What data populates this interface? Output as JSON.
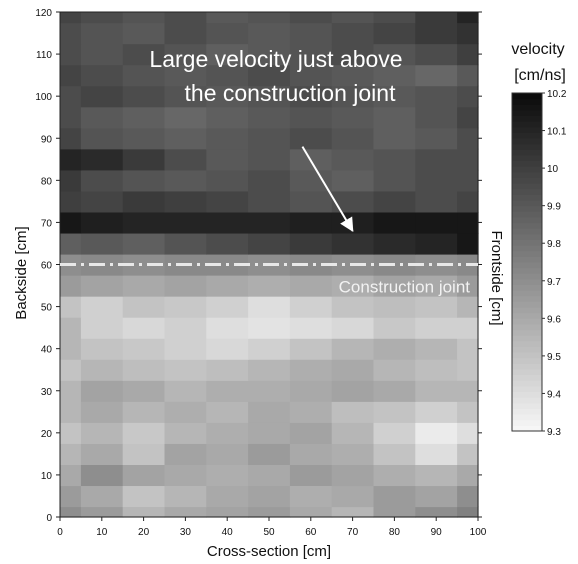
{
  "chart_data": {
    "type": "heatmap",
    "xlabel": "Cross-section [cm]",
    "ylabel": "Backside [cm]",
    "ylabel_right": "Frontside [cm]",
    "xlim": [
      0,
      100
    ],
    "ylim": [
      0,
      120
    ],
    "x_ticks": [
      0,
      10,
      20,
      30,
      40,
      50,
      60,
      70,
      80,
      90,
      100
    ],
    "y_ticks": [
      0,
      10,
      20,
      30,
      40,
      50,
      60,
      70,
      80,
      90,
      100,
      110,
      120
    ],
    "colorbar": {
      "title_line1": "velocity",
      "title_line2": "[cm/ns]",
      "min": 9.3,
      "max": 10.2,
      "ticks": [
        9.3,
        9.4,
        9.5,
        9.6,
        9.7,
        9.8,
        9.9,
        10,
        10.1,
        10.2
      ],
      "scale": "grayscale, white = low, black = high"
    },
    "x_edges": [
      0,
      5,
      15,
      25,
      35,
      45,
      55,
      65,
      75,
      85,
      95,
      100
    ],
    "y_edges": [
      0,
      2.5,
      7.5,
      12.5,
      17.5,
      22.5,
      27.5,
      32.5,
      37.5,
      42.5,
      47.5,
      52.5,
      57.5,
      62.5,
      67.5,
      72.5,
      77.5,
      82.5,
      87.5,
      92.5,
      97.5,
      102.5,
      107.5,
      112.5,
      117.5,
      120
    ],
    "values": [
      [
        9.7,
        9.65,
        9.55,
        9.6,
        9.62,
        9.65,
        9.6,
        9.55,
        9.65,
        9.7,
        9.75
      ],
      [
        9.65,
        9.6,
        9.5,
        9.55,
        9.6,
        9.62,
        9.58,
        9.6,
        9.65,
        9.62,
        9.7
      ],
      [
        9.6,
        9.7,
        9.62,
        9.6,
        9.58,
        9.6,
        9.65,
        9.62,
        9.58,
        9.55,
        9.6
      ],
      [
        9.55,
        9.6,
        9.5,
        9.62,
        9.6,
        9.65,
        9.6,
        9.58,
        9.5,
        9.4,
        9.5
      ],
      [
        9.5,
        9.55,
        9.48,
        9.55,
        9.58,
        9.6,
        9.62,
        9.55,
        9.45,
        9.35,
        9.4
      ],
      [
        9.55,
        9.6,
        9.55,
        9.58,
        9.55,
        9.6,
        9.58,
        9.52,
        9.5,
        9.45,
        9.5
      ],
      [
        9.55,
        9.62,
        9.6,
        9.55,
        9.58,
        9.58,
        9.6,
        9.62,
        9.6,
        9.55,
        9.55
      ],
      [
        9.5,
        9.55,
        9.52,
        9.5,
        9.52,
        9.55,
        9.58,
        9.6,
        9.55,
        9.52,
        9.5
      ],
      [
        9.55,
        9.5,
        9.48,
        9.45,
        9.42,
        9.45,
        9.5,
        9.55,
        9.58,
        9.55,
        9.5
      ],
      [
        9.55,
        9.45,
        9.42,
        9.45,
        9.4,
        9.38,
        9.4,
        9.42,
        9.48,
        9.45,
        9.45
      ],
      [
        9.5,
        9.45,
        9.5,
        9.48,
        9.45,
        9.4,
        9.45,
        9.5,
        9.52,
        9.5,
        9.55
      ],
      [
        9.65,
        9.62,
        9.6,
        9.62,
        9.6,
        9.58,
        9.6,
        9.58,
        9.62,
        9.6,
        9.65
      ],
      [
        9.7,
        9.72,
        9.7,
        9.72,
        9.72,
        9.7,
        9.72,
        9.7,
        9.72,
        9.7,
        9.72
      ],
      [
        9.88,
        9.9,
        9.88,
        9.92,
        9.95,
        9.98,
        10.02,
        10.05,
        10.08,
        10.1,
        10.15
      ],
      [
        10.15,
        10.12,
        10.1,
        10.1,
        10.1,
        10.1,
        10.12,
        10.12,
        10.15,
        10.15,
        10.15
      ],
      [
        10.0,
        9.98,
        10.02,
        10.0,
        9.98,
        9.95,
        9.92,
        9.95,
        9.98,
        9.95,
        9.98
      ],
      [
        10.02,
        9.95,
        9.92,
        9.9,
        9.92,
        9.95,
        9.9,
        9.88,
        9.92,
        9.95,
        9.95
      ],
      [
        10.1,
        10.08,
        10.02,
        9.95,
        9.9,
        9.92,
        9.88,
        9.9,
        9.92,
        9.95,
        9.95
      ],
      [
        9.98,
        9.92,
        9.9,
        9.88,
        9.9,
        9.92,
        9.95,
        9.92,
        9.88,
        9.9,
        9.95
      ],
      [
        9.95,
        9.9,
        9.88,
        9.85,
        9.88,
        9.9,
        9.92,
        9.9,
        9.88,
        9.92,
        9.98
      ],
      [
        9.95,
        9.98,
        9.95,
        9.92,
        9.9,
        9.92,
        9.95,
        9.92,
        9.9,
        9.92,
        9.95
      ],
      [
        9.98,
        9.95,
        9.92,
        9.9,
        9.92,
        9.95,
        9.92,
        9.9,
        9.88,
        9.85,
        9.9
      ],
      [
        9.95,
        9.92,
        9.95,
        9.92,
        9.88,
        9.9,
        9.92,
        9.95,
        9.92,
        9.95,
        10.0
      ],
      [
        9.95,
        9.92,
        9.9,
        9.95,
        9.92,
        9.9,
        9.92,
        9.95,
        9.98,
        10.02,
        10.05
      ],
      [
        9.98,
        9.95,
        9.92,
        9.95,
        9.9,
        9.92,
        9.95,
        9.92,
        9.95,
        10.02,
        10.1
      ]
    ],
    "annotations": [
      {
        "text_line1": "Large velocity just above",
        "text_line2": "the construction joint",
        "arrow_from": [
          58,
          88
        ],
        "arrow_to": [
          70,
          68
        ]
      },
      {
        "text": "Construction joint",
        "y": 60,
        "line_style": "dash-dot",
        "line_color": "#e8e8e8"
      }
    ]
  }
}
